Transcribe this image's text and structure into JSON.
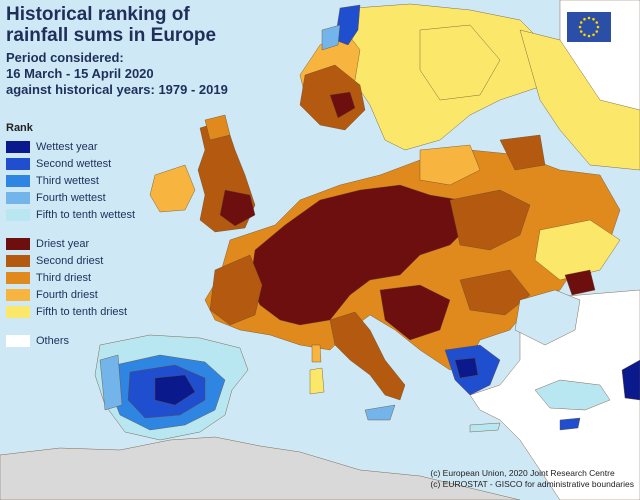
{
  "title": {
    "line1": "Historical ranking of",
    "line2": "rainfall sums in Europe"
  },
  "period": {
    "line1": "Period considered:",
    "line2": "16 March - 15 April 2020",
    "line3": "against historical years: 1979 - 2019"
  },
  "legend": {
    "title": "Rank",
    "items": [
      {
        "label": "Wettest year",
        "color": "#0a1a8c"
      },
      {
        "label": "Second wettest",
        "color": "#1f4fcf"
      },
      {
        "label": "Third wettest",
        "color": "#2f86e2"
      },
      {
        "label": "Fourth wettest",
        "color": "#73b4ea"
      },
      {
        "label": "Fifth to tenth wettest",
        "color": "#b8e6f1"
      },
      {
        "label": "Driest year",
        "color": "#6e0f0f"
      },
      {
        "label": "Second driest",
        "color": "#b35a10"
      },
      {
        "label": "Third driest",
        "color": "#e08a1e"
      },
      {
        "label": "Fourth driest",
        "color": "#f7b43e"
      },
      {
        "label": "Fifth to tenth driest",
        "color": "#fbe86a"
      },
      {
        "label": "Others",
        "color": "#ffffff"
      }
    ]
  },
  "credits": {
    "line1": "(c) European Union, 2020 Joint Research Centre",
    "line2": "(c) EUROSTAT - GISCO for administrative boundaries"
  },
  "map": {
    "sea_color": "#cfe8f5",
    "land_other_color": "#ffffff",
    "africa_color": "#d9d9d9"
  },
  "logo": {
    "flag_color": "#2b4fa6",
    "star_color": "#ffd500"
  }
}
